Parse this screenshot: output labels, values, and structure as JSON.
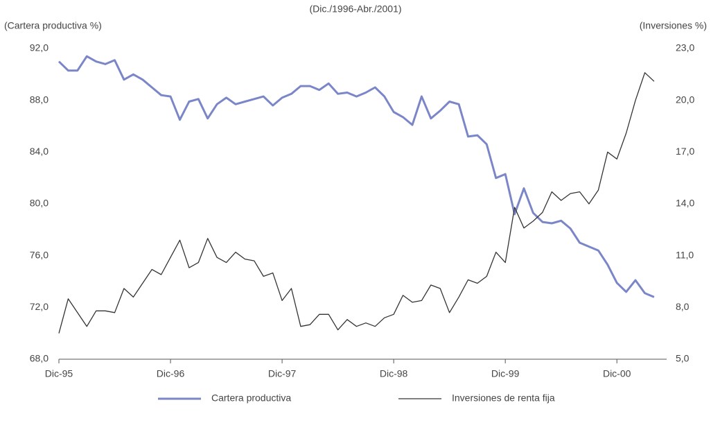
{
  "chart_data": {
    "type": "line",
    "title": "(Dic./1996-Abr./2001)",
    "y_label": "(Cartera productiva %)",
    "y2_label": "(Inversiones %)",
    "categories": [
      "Dic-95",
      null,
      null,
      null,
      null,
      null,
      null,
      null,
      null,
      null,
      null,
      null,
      "Dic-96",
      null,
      null,
      null,
      null,
      null,
      null,
      null,
      null,
      null,
      null,
      null,
      "Dic-97",
      null,
      null,
      null,
      null,
      null,
      null,
      null,
      null,
      null,
      null,
      null,
      "Dic-98",
      null,
      null,
      null,
      null,
      null,
      null,
      null,
      null,
      null,
      null,
      null,
      "Dic-99",
      null,
      null,
      null,
      null,
      null,
      null,
      null,
      null,
      null,
      null,
      null,
      "Dic-00",
      null,
      null,
      null,
      null
    ],
    "ylim": [
      68,
      92
    ],
    "yticks": [
      {
        "value": 92,
        "label": "92,0"
      },
      {
        "value": 88,
        "label": "88,0"
      },
      {
        "value": 84,
        "label": "84,0"
      },
      {
        "value": 80,
        "label": "80,0"
      },
      {
        "value": 76,
        "label": "76,0"
      },
      {
        "value": 72,
        "label": "72,0"
      },
      {
        "value": 68,
        "label": "68,0"
      }
    ],
    "y2lim": [
      5,
      23
    ],
    "y2ticks": [
      {
        "value": 23,
        "label": "23,0"
      },
      {
        "value": 20,
        "label": "20,0"
      },
      {
        "value": 17,
        "label": "17,0"
      },
      {
        "value": 14,
        "label": "14,0"
      },
      {
        "value": 11,
        "label": "11,0"
      },
      {
        "value": 8,
        "label": "8,0"
      },
      {
        "value": 5,
        "label": "5,0"
      }
    ],
    "grid": false,
    "series": [
      {
        "name": "Cartera productiva",
        "color": "#7b86c8",
        "width": 3,
        "values": [
          91.0,
          90.3,
          90.3,
          91.4,
          91.0,
          90.8,
          91.1,
          89.6,
          90.0,
          89.6,
          89.0,
          88.4,
          88.3,
          86.5,
          87.9,
          88.1,
          86.6,
          87.7,
          88.2,
          87.7,
          87.9,
          88.1,
          88.3,
          87.6,
          88.2,
          88.5,
          89.1,
          89.1,
          88.8,
          89.3,
          88.5,
          88.6,
          88.3,
          88.6,
          89.0,
          88.3,
          87.1,
          86.7,
          86.1,
          88.3,
          86.6,
          87.2,
          87.9,
          87.7,
          85.2,
          85.3,
          84.6,
          82.0,
          82.3,
          79.2,
          81.2,
          79.3,
          78.6,
          78.5,
          78.7,
          78.1,
          77.0,
          76.7,
          76.4,
          75.3,
          73.9,
          73.2,
          74.1,
          73.1,
          72.8
        ]
      },
      {
        "name": "Inversiones de renta fija",
        "color": "#333333",
        "width": 1.3,
        "axis": "y2",
        "values": [
          6.5,
          8.5,
          7.7,
          6.9,
          7.8,
          7.8,
          7.7,
          9.1,
          8.6,
          9.4,
          10.2,
          9.9,
          10.9,
          11.9,
          10.3,
          10.6,
          12.0,
          10.9,
          10.6,
          11.2,
          10.8,
          10.7,
          9.8,
          10.0,
          8.4,
          9.1,
          6.9,
          7.0,
          7.6,
          7.6,
          6.7,
          7.3,
          6.9,
          7.1,
          6.9,
          7.4,
          7.6,
          8.7,
          8.3,
          8.4,
          9.3,
          9.1,
          7.7,
          8.6,
          9.6,
          9.4,
          9.8,
          11.2,
          10.6,
          13.8,
          12.6,
          13.0,
          13.5,
          14.7,
          14.2,
          14.6,
          14.7,
          14.0,
          14.8,
          17.0,
          16.6,
          18.1,
          20.0,
          21.6,
          21.1
        ]
      }
    ]
  }
}
